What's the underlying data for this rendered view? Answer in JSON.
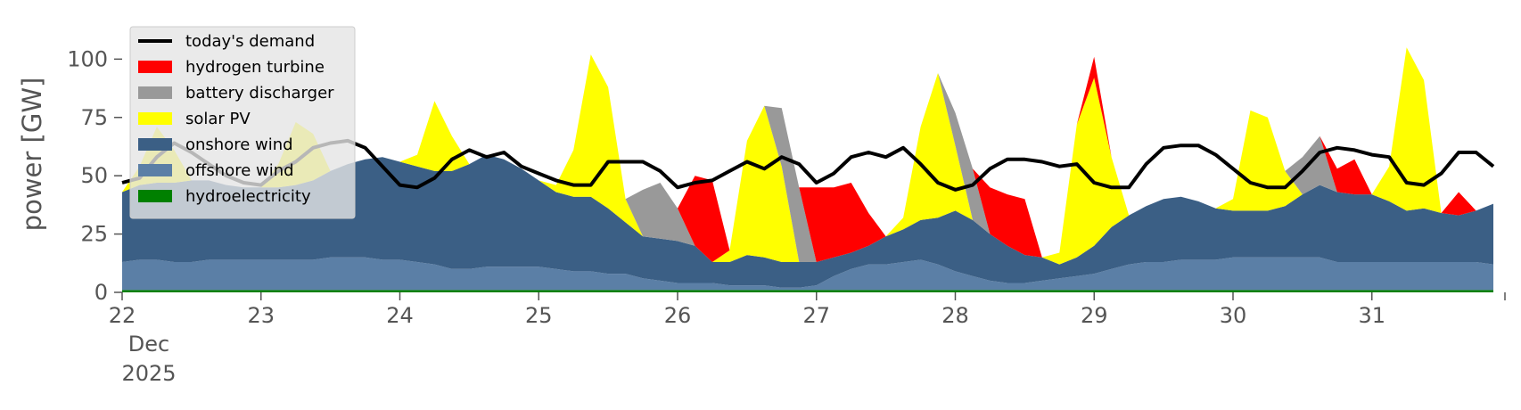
{
  "chart_data": {
    "type": "area",
    "title": "",
    "xlabel": "",
    "ylabel": "power [GW]",
    "ylim": [
      0,
      120
    ],
    "x_start": "2025-12-22T00:00",
    "x_end": "2025-12-31T23:00",
    "hours": [
      0,
      3,
      6,
      9,
      12,
      15,
      18,
      21,
      24,
      27,
      30,
      33,
      36,
      39,
      42,
      45,
      48,
      51,
      54,
      57,
      60,
      63,
      66,
      69,
      72,
      75,
      78,
      81,
      84,
      87,
      90,
      93,
      96,
      99,
      102,
      105,
      108,
      111,
      114,
      117,
      120,
      123,
      126,
      129,
      132,
      135,
      138,
      141,
      144,
      147,
      150,
      153,
      156,
      159,
      162,
      165,
      168,
      171,
      174,
      177,
      180,
      183,
      186,
      189,
      192,
      195,
      198,
      201,
      204,
      207,
      210,
      213,
      216,
      219,
      222,
      225,
      228,
      231,
      234,
      237
    ],
    "x_ticks": [
      {
        "label": "22",
        "hour": 0
      },
      {
        "label": "23",
        "hour": 24
      },
      {
        "label": "24",
        "hour": 48
      },
      {
        "label": "25",
        "hour": 72
      },
      {
        "label": "26",
        "hour": 96
      },
      {
        "label": "27",
        "hour": 120
      },
      {
        "label": "28",
        "hour": 144
      },
      {
        "label": "29",
        "hour": 168
      },
      {
        "label": "30",
        "hour": 192
      },
      {
        "label": "31",
        "hour": 216
      }
    ],
    "x_tick_sublabels": [
      "Dec",
      "2025"
    ],
    "y_ticks": [
      0,
      25,
      50,
      75,
      100
    ],
    "legend_position": "top-left",
    "series": [
      {
        "name": "hydroelectricity",
        "color": "#008000",
        "values": [
          1,
          1,
          1,
          1,
          1,
          1,
          1,
          1,
          1,
          1,
          1,
          1,
          1,
          1,
          1,
          1,
          1,
          1,
          1,
          1,
          1,
          1,
          1,
          1,
          1,
          1,
          1,
          1,
          1,
          1,
          1,
          1,
          1,
          1,
          1,
          1,
          1,
          1,
          1,
          1,
          1,
          1,
          1,
          1,
          1,
          1,
          1,
          1,
          1,
          1,
          1,
          1,
          1,
          1,
          1,
          1,
          1,
          1,
          1,
          1,
          1,
          1,
          1,
          1,
          1,
          1,
          1,
          1,
          1,
          1,
          1,
          1,
          1,
          1,
          1,
          1,
          1,
          1,
          1,
          1
        ]
      },
      {
        "name": "offshore wind",
        "color": "#5b7fa6",
        "values": [
          12,
          13,
          13,
          12,
          12,
          13,
          13,
          13,
          13,
          13,
          13,
          13,
          14,
          14,
          14,
          13,
          13,
          12,
          11,
          9,
          9,
          10,
          10,
          10,
          10,
          9,
          8,
          8,
          7,
          7,
          5,
          4,
          3,
          3,
          3,
          2,
          2,
          2,
          1,
          1,
          2,
          6,
          9,
          11,
          11,
          12,
          13,
          11,
          8,
          6,
          4,
          3,
          3,
          4,
          5,
          6,
          7,
          9,
          11,
          12,
          12,
          13,
          13,
          13,
          14,
          14,
          14,
          14,
          14,
          14,
          12,
          12,
          12,
          12,
          12,
          12,
          12,
          12,
          12,
          11
        ]
      },
      {
        "name": "onshore wind",
        "color": "#3b5f85",
        "values": [
          30,
          32,
          33,
          34,
          35,
          34,
          32,
          31,
          31,
          31,
          32,
          34,
          37,
          40,
          42,
          44,
          42,
          41,
          40,
          42,
          45,
          48,
          46,
          42,
          37,
          33,
          32,
          32,
          28,
          22,
          18,
          18,
          18,
          16,
          9,
          10,
          13,
          12,
          11,
          11,
          10,
          8,
          7,
          8,
          12,
          14,
          17,
          20,
          26,
          24,
          20,
          16,
          12,
          10,
          6,
          8,
          12,
          18,
          21,
          24,
          27,
          27,
          25,
          22,
          20,
          20,
          20,
          22,
          27,
          31,
          30,
          29,
          29,
          26,
          22,
          23,
          21,
          20,
          22,
          26
        ]
      },
      {
        "name": "solar PV",
        "color": "#ffff00",
        "values": [
          0,
          8,
          24,
          14,
          0,
          0,
          0,
          0,
          0,
          10,
          27,
          20,
          0,
          0,
          0,
          0,
          0,
          5,
          30,
          15,
          0,
          0,
          0,
          0,
          0,
          3,
          20,
          61,
          52,
          10,
          0,
          0,
          0,
          0,
          0,
          5,
          49,
          65,
          41,
          0,
          0,
          0,
          0,
          0,
          0,
          5,
          40,
          62,
          28,
          0,
          0,
          0,
          0,
          0,
          5,
          57,
          72,
          30,
          0,
          0,
          0,
          0,
          0,
          0,
          5,
          43,
          40,
          15,
          0,
          0,
          0,
          0,
          0,
          15,
          70,
          55,
          0,
          0,
          0,
          0
        ]
      },
      {
        "name": "battery discharger",
        "color": "#999999",
        "values": [
          0,
          0,
          0,
          0,
          0,
          0,
          0,
          0,
          0,
          0,
          0,
          0,
          0,
          0,
          0,
          0,
          0,
          0,
          0,
          0,
          0,
          0,
          0,
          0,
          0,
          0,
          0,
          0,
          0,
          0,
          20,
          24,
          14,
          0,
          0,
          0,
          0,
          0,
          25,
          32,
          0,
          0,
          0,
          0,
          0,
          0,
          0,
          0,
          14,
          22,
          0,
          0,
          0,
          0,
          0,
          0,
          0,
          0,
          0,
          0,
          0,
          0,
          0,
          0,
          0,
          0,
          0,
          0,
          16,
          21,
          0,
          0,
          0,
          0,
          0,
          0,
          0,
          0,
          0,
          0
        ]
      },
      {
        "name": "hydrogen turbine",
        "color": "#ff0000",
        "values": [
          0,
          0,
          0,
          0,
          0,
          0,
          0,
          0,
          0,
          0,
          0,
          0,
          0,
          0,
          0,
          0,
          0,
          0,
          0,
          0,
          0,
          0,
          0,
          0,
          0,
          0,
          0,
          0,
          0,
          0,
          0,
          0,
          0,
          30,
          35,
          0,
          0,
          0,
          0,
          0,
          32,
          30,
          30,
          14,
          0,
          0,
          0,
          0,
          0,
          0,
          20,
          22,
          24,
          0,
          0,
          0,
          9,
          0,
          0,
          0,
          0,
          0,
          0,
          0,
          0,
          0,
          0,
          0,
          0,
          0,
          10,
          15,
          0,
          0,
          0,
          0,
          0,
          10,
          0,
          0
        ]
      }
    ],
    "demand": {
      "name": "today's demand",
      "color": "#000000",
      "values": [
        47,
        49,
        58,
        64,
        60,
        55,
        50,
        47,
        46,
        52,
        56,
        62,
        64,
        65,
        62,
        54,
        46,
        45,
        49,
        57,
        61,
        58,
        60,
        54,
        51,
        48,
        46,
        46,
        56,
        56,
        56,
        52,
        45,
        47,
        48,
        52,
        56,
        53,
        58,
        55,
        47,
        51,
        58,
        60,
        58,
        62,
        55,
        47,
        44,
        46,
        53,
        57,
        57,
        56,
        54,
        55,
        47,
        45,
        45,
        55,
        62,
        63,
        63,
        59,
        53,
        47,
        45,
        45,
        52,
        60,
        62,
        61,
        59,
        58,
        47,
        46,
        51,
        60,
        60,
        54
      ]
    },
    "legend": [
      {
        "label": "today's demand",
        "kind": "line",
        "color": "#000000"
      },
      {
        "label": "hydrogen turbine",
        "kind": "patch",
        "color": "#ff0000"
      },
      {
        "label": "battery discharger",
        "kind": "patch",
        "color": "#999999"
      },
      {
        "label": "solar PV",
        "kind": "patch",
        "color": "#ffff00"
      },
      {
        "label": "onshore wind",
        "kind": "patch",
        "color": "#3b5f85"
      },
      {
        "label": "offshore wind",
        "kind": "patch",
        "color": "#5b7fa6"
      },
      {
        "label": "hydroelectricity",
        "kind": "patch",
        "color": "#008000"
      }
    ]
  }
}
